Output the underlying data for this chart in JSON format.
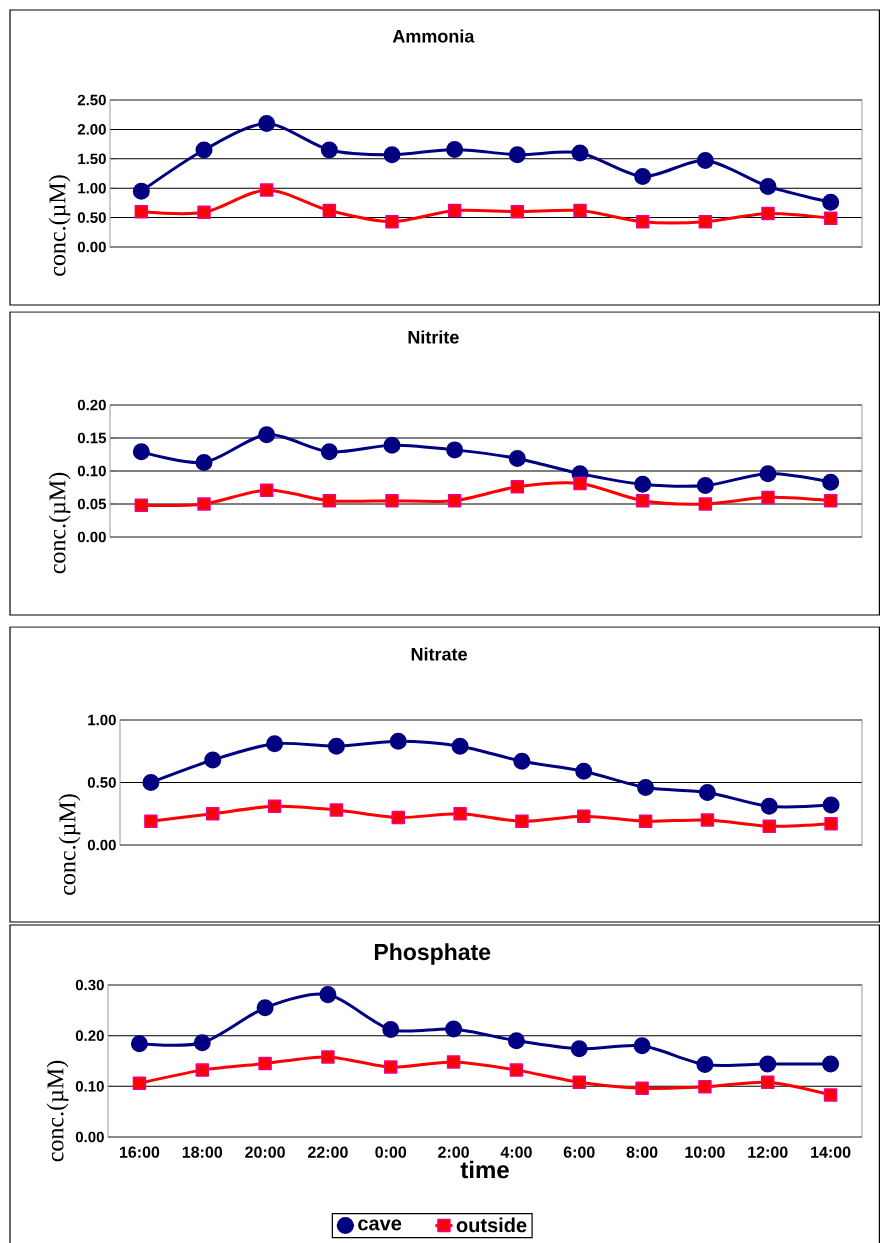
{
  "chart_data": [
    {
      "type": "line",
      "title": "Ammonia",
      "ylabel": "conc.(µM)",
      "categories": [
        null,
        null,
        null,
        null,
        null,
        null,
        null,
        null,
        null,
        null,
        null,
        null
      ],
      "grid": "y",
      "ylim": [
        0,
        2.5
      ],
      "yticks": [
        {
          "value": 0,
          "label": "0.00"
        },
        {
          "value": 0.5,
          "label": "0.50"
        },
        {
          "value": 1,
          "label": "1.00"
        },
        {
          "value": 1.5,
          "label": "1.50"
        },
        {
          "value": 2,
          "label": "2.00"
        },
        {
          "value": 2.5,
          "label": "2.50"
        }
      ],
      "series": [
        {
          "color": "#000080",
          "marker": "circle",
          "values": [
            0.95,
            1.65,
            2.1,
            1.65,
            1.57,
            1.66,
            1.57,
            1.6,
            1.2,
            1.47,
            1.03,
            0.76
          ]
        },
        {
          "color": "#ff0000",
          "marker": "square",
          "values": [
            0.6,
            0.59,
            0.97,
            0.62,
            0.43,
            0.62,
            0.6,
            0.62,
            0.43,
            0.43,
            0.57,
            0.49
          ]
        }
      ]
    },
    {
      "type": "line",
      "title": "Nitrite",
      "ylabel": "conc.(µM)",
      "categories": [
        null,
        null,
        null,
        null,
        null,
        null,
        null,
        null,
        null,
        null,
        null,
        null
      ],
      "grid": "y",
      "ylim": [
        0,
        0.2
      ],
      "yticks": [
        {
          "value": 0,
          "label": "0.00"
        },
        {
          "value": 0.05,
          "label": "0.05"
        },
        {
          "value": 0.1,
          "label": "0.10"
        },
        {
          "value": 0.15,
          "label": "0.15"
        },
        {
          "value": 0.2,
          "label": "0.20"
        }
      ],
      "series": [
        {
          "color": "#000080",
          "marker": "circle",
          "values": [
            0.129,
            0.113,
            0.155,
            0.129,
            0.139,
            0.132,
            0.119,
            0.096,
            0.08,
            0.078,
            0.096,
            0.083
          ]
        },
        {
          "color": "#ff0000",
          "marker": "square",
          "values": [
            0.048,
            0.05,
            0.071,
            0.055,
            0.055,
            0.055,
            0.076,
            0.081,
            0.055,
            0.05,
            0.06,
            0.055
          ]
        }
      ]
    },
    {
      "type": "line",
      "title": "Nitrate",
      "ylabel": "conc.(µM)",
      "categories": [
        null,
        null,
        null,
        null,
        null,
        null,
        null,
        null,
        null,
        null,
        null,
        null
      ],
      "grid": "y",
      "ylim": [
        0,
        1
      ],
      "yticks": [
        {
          "value": 0,
          "label": "0.00"
        },
        {
          "value": 0.5,
          "label": "0.50"
        },
        {
          "value": 1,
          "label": "1.00"
        }
      ],
      "series": [
        {
          "color": "#000080",
          "marker": "circle",
          "values": [
            0.5,
            0.68,
            0.81,
            0.79,
            0.83,
            0.79,
            0.67,
            0.59,
            0.46,
            0.42,
            0.31,
            0.32
          ]
        },
        {
          "color": "#ff0000",
          "marker": "square",
          "values": [
            0.19,
            0.25,
            0.31,
            0.28,
            0.22,
            0.25,
            0.19,
            0.23,
            0.19,
            0.2,
            0.15,
            0.17
          ]
        }
      ]
    },
    {
      "type": "line",
      "title": "Phosphate",
      "ylabel": "conc.(µM)",
      "xlabel": "time",
      "categories": [
        "16:00",
        "18:00",
        "20:00",
        "22:00",
        "0:00",
        "2:00",
        "4:00",
        "6:00",
        "8:00",
        "10:00",
        "12:00",
        "14:00"
      ],
      "grid": "y",
      "legend": "bottom",
      "ylim": [
        0,
        0.3
      ],
      "yticks": [
        {
          "value": 0,
          "label": "0.00"
        },
        {
          "value": 0.1,
          "label": "0.10"
        },
        {
          "value": 0.2,
          "label": "0.20"
        },
        {
          "value": 0.3,
          "label": "0.30"
        }
      ],
      "series": [
        {
          "name": "cave",
          "color": "#000080",
          "marker": "circle",
          "values": [
            0.184,
            0.186,
            0.255,
            0.281,
            0.212,
            0.213,
            0.19,
            0.174,
            0.18,
            0.143,
            0.144,
            0.144
          ]
        },
        {
          "name": "outside",
          "color": "#ff0000",
          "marker": "square",
          "values": [
            0.106,
            0.132,
            0.145,
            0.158,
            0.138,
            0.148,
            0.132,
            0.108,
            0.096,
            0.099,
            0.108,
            0.083
          ]
        }
      ]
    }
  ]
}
